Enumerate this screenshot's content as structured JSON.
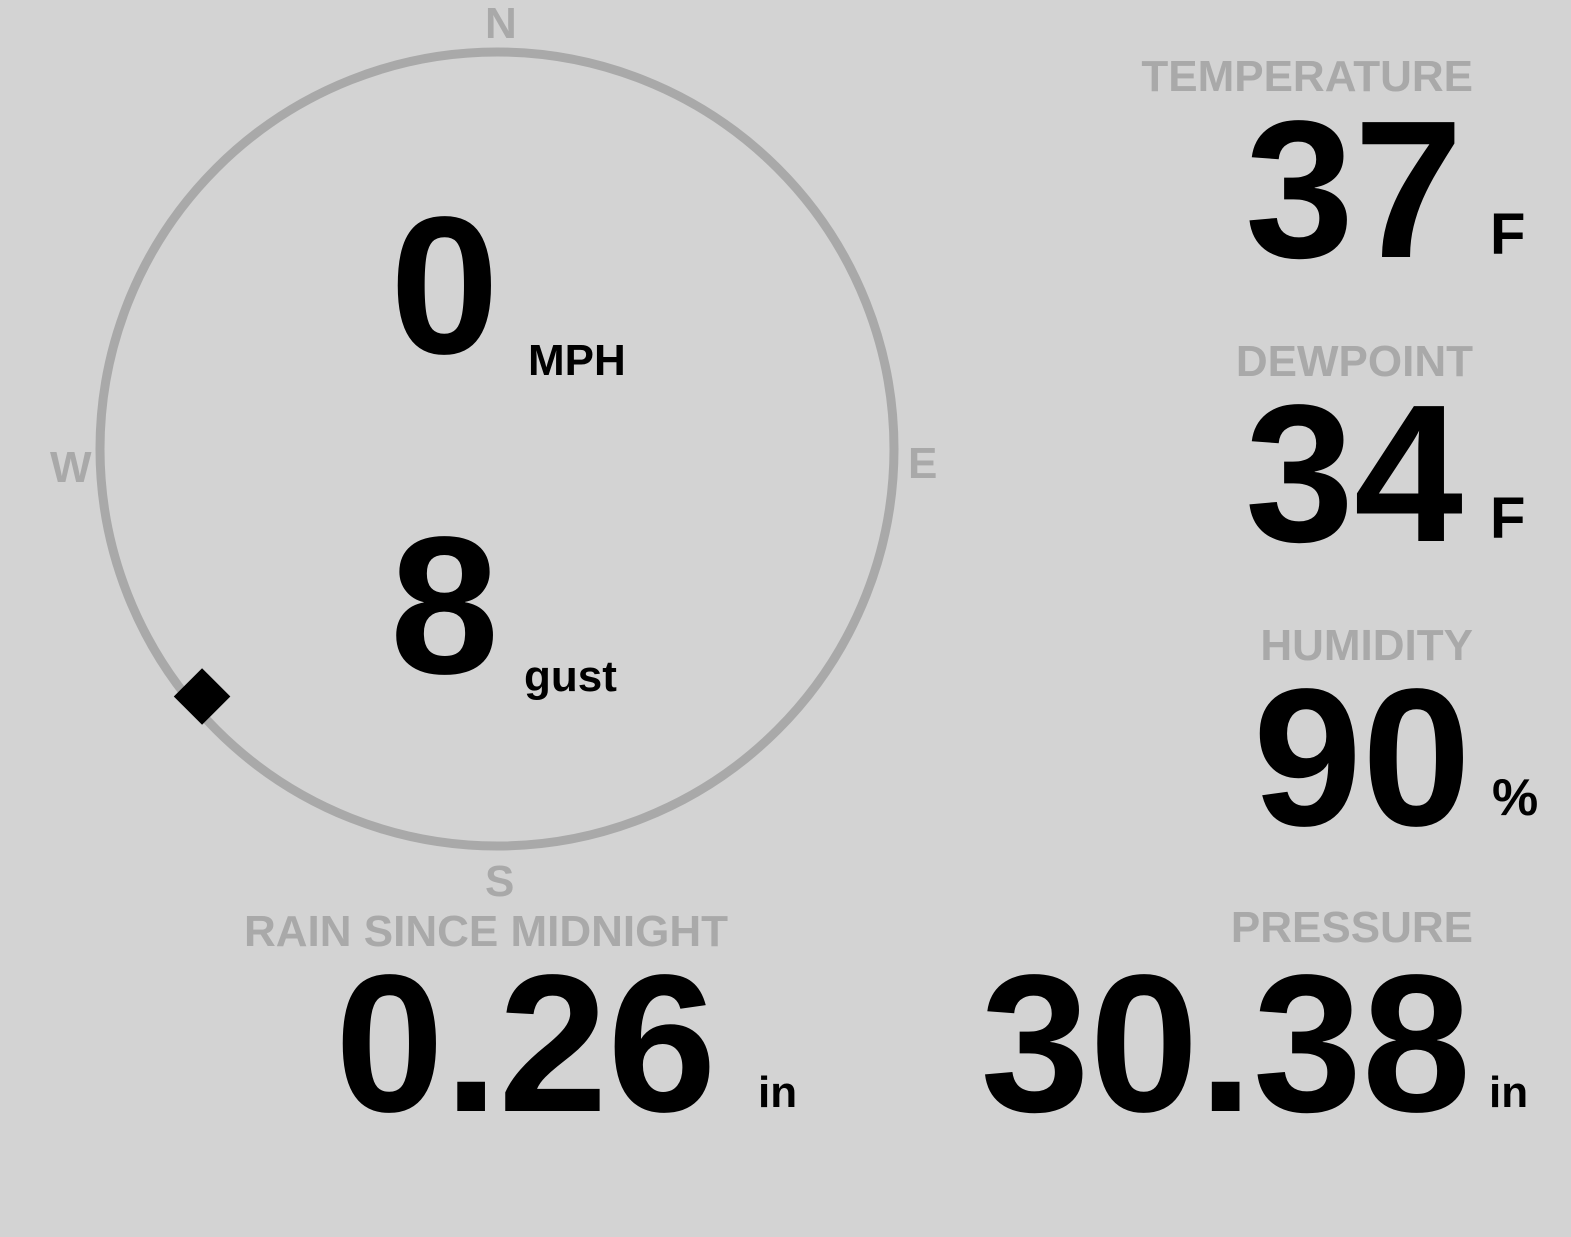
{
  "colors": {
    "background": "#d3d3d3",
    "label": "#a9a9a9",
    "value": "#000000",
    "dial": "#a9a9a9"
  },
  "wind": {
    "compass": {
      "n": "N",
      "e": "E",
      "s": "S",
      "w": "W"
    },
    "speed": "0",
    "speed_unit": "MPH",
    "gust": "8",
    "gust_unit": "gust",
    "direction_degrees": 230,
    "marker_icon": "diamond-direction-marker"
  },
  "temperature": {
    "label": "TEMPERATURE",
    "value": "37",
    "unit": "F"
  },
  "dewpoint": {
    "label": "DEWPOINT",
    "value": "34",
    "unit": "F"
  },
  "humidity": {
    "label": "HUMIDITY",
    "value": "90",
    "unit": "%"
  },
  "rain": {
    "label": "RAIN SINCE MIDNIGHT",
    "value": "0.26",
    "unit": "in"
  },
  "pressure": {
    "label": "PRESSURE",
    "value": "30.38",
    "unit": "in"
  }
}
